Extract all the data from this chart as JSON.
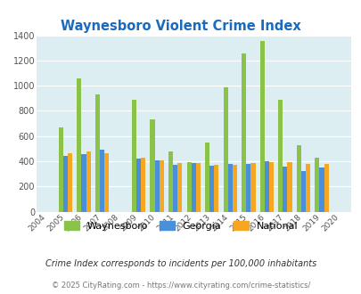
{
  "title": "Waynesboro Violent Crime Index",
  "years": [
    2004,
    2005,
    2006,
    2007,
    2008,
    2009,
    2010,
    2011,
    2012,
    2013,
    2014,
    2015,
    2016,
    2017,
    2018,
    2019,
    2020
  ],
  "waynesboro": [
    0,
    670,
    1060,
    930,
    0,
    890,
    735,
    475,
    390,
    550,
    990,
    1255,
    1355,
    885,
    530,
    425,
    0
  ],
  "georgia": [
    0,
    440,
    460,
    490,
    0,
    420,
    405,
    375,
    385,
    365,
    380,
    380,
    400,
    360,
    325,
    350,
    0
  ],
  "national": [
    0,
    465,
    475,
    465,
    0,
    430,
    405,
    385,
    385,
    370,
    375,
    385,
    395,
    395,
    380,
    380,
    0
  ],
  "waynesboro_color": "#8bc34a",
  "georgia_color": "#4a90d9",
  "national_color": "#f5a623",
  "plot_bg": "#ddeef3",
  "title_color": "#1a6bbf",
  "ylim": [
    0,
    1400
  ],
  "yticks": [
    0,
    200,
    400,
    600,
    800,
    1000,
    1200,
    1400
  ],
  "footnote1": "Crime Index corresponds to incidents per 100,000 inhabitants",
  "footnote2": "© 2025 CityRating.com - https://www.cityrating.com/crime-statistics/",
  "legend_labels": [
    "Waynesboro",
    "Georgia",
    "National"
  ],
  "bar_width": 0.25
}
